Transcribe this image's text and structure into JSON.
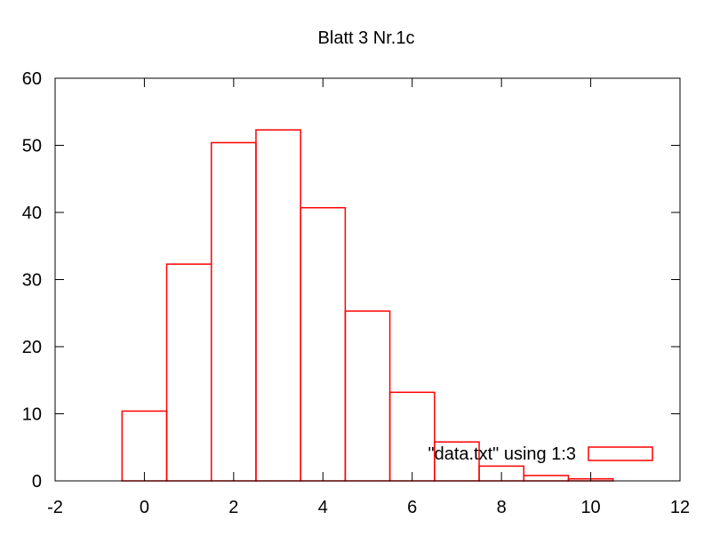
{
  "chart_data": {
    "type": "bar",
    "title": "Blatt 3 Nr.1c",
    "xlabel": "",
    "ylabel": "",
    "xlim": [
      -2,
      12
    ],
    "ylim": [
      0,
      60
    ],
    "xticks": [
      "-2",
      "0",
      "2",
      "4",
      "6",
      "8",
      "10",
      "12"
    ],
    "yticks": [
      "0",
      "10",
      "20",
      "30",
      "40",
      "50",
      "60"
    ],
    "grid": false,
    "legend_position": "bottom-right",
    "series": [
      {
        "name": "\"data.txt\" using 1:3",
        "color": "#ff0000",
        "x": [
          0,
          1,
          2,
          3,
          4,
          5,
          6,
          7,
          8,
          9,
          10
        ],
        "values": [
          10.4,
          32.3,
          50.4,
          52.3,
          40.7,
          25.3,
          13.2,
          5.8,
          2.2,
          0.8,
          0.3
        ]
      }
    ]
  }
}
